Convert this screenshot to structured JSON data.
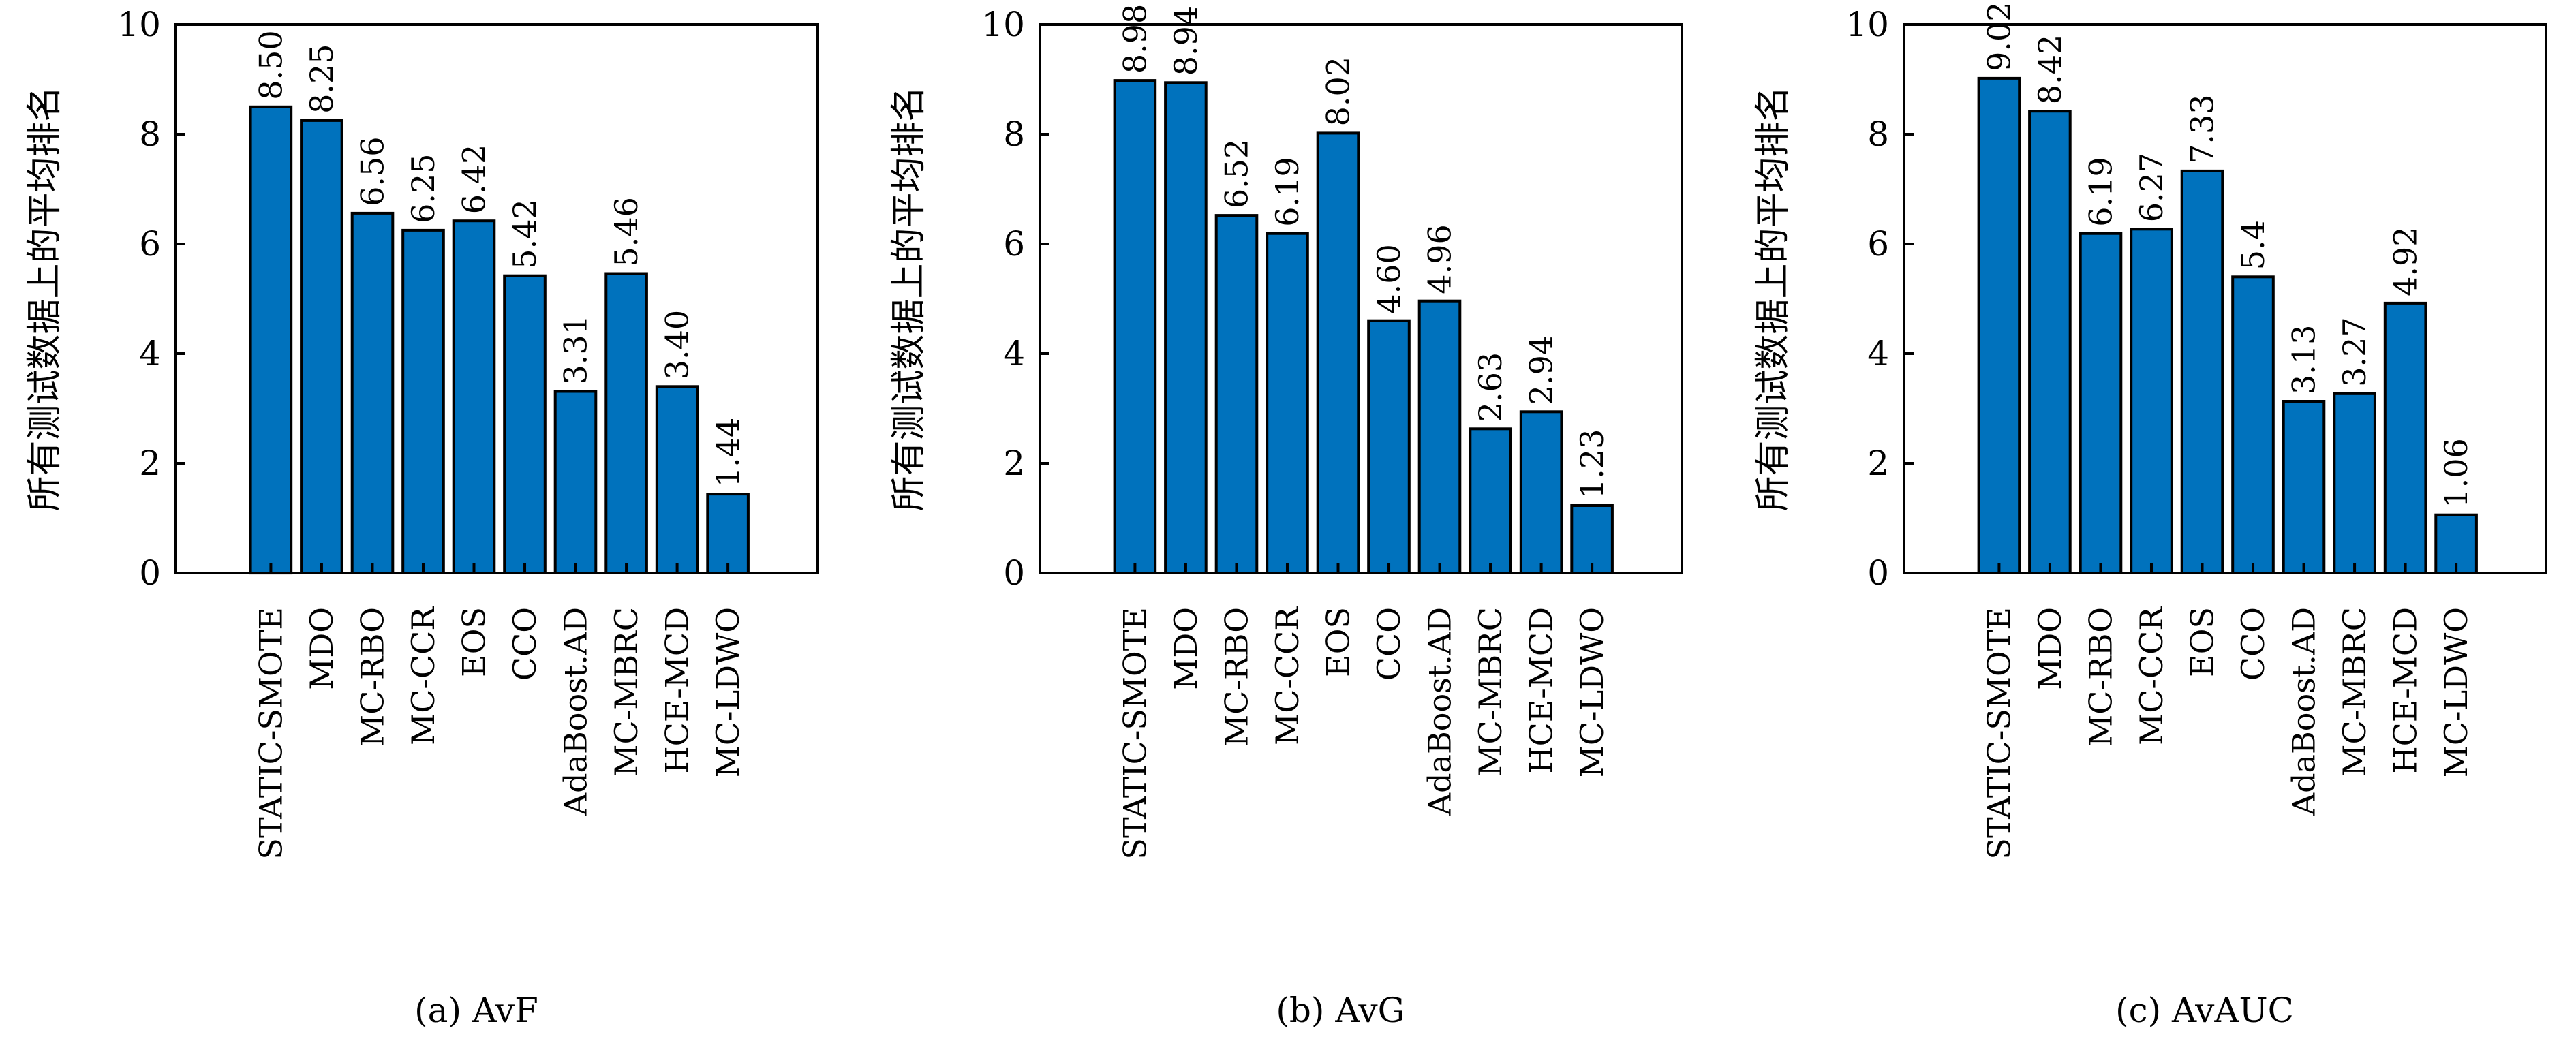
{
  "figure": {
    "bar_color": "#0072BD",
    "edge_color": "#000000"
  },
  "chart_data": [
    {
      "type": "bar",
      "title": "(a) AvF",
      "xlabel": "",
      "ylabel": "所有测试数据上的平均排名",
      "ylim": [
        0,
        10
      ],
      "yticks": [
        "0",
        "2",
        "4",
        "6",
        "8",
        "10"
      ],
      "grid": false,
      "categories": [
        "STATIC-SMOTE",
        "MDO",
        "MC-RBO",
        "MC-CCR",
        "EOS",
        "CCO",
        "AdaBoost.AD",
        "MC-MBRC",
        "HCE-MCD",
        "MC-LDWO"
      ],
      "values": [
        8.5,
        8.25,
        6.56,
        6.25,
        6.42,
        5.42,
        3.31,
        5.46,
        3.4,
        1.44
      ],
      "value_labels": [
        "8.50",
        "8.25",
        "6.56",
        "6.25",
        "6.42",
        "5.42",
        "3.31",
        "5.46",
        "3.40",
        "1.44"
      ]
    },
    {
      "type": "bar",
      "title": "(b) AvG",
      "xlabel": "",
      "ylabel": "所有测试数据上的平均排名",
      "ylim": [
        0,
        10
      ],
      "yticks": [
        "0",
        "2",
        "4",
        "6",
        "8",
        "10"
      ],
      "grid": false,
      "categories": [
        "STATIC-SMOTE",
        "MDO",
        "MC-RBO",
        "MC-CCR",
        "EOS",
        "CCO",
        "AdaBoost.AD",
        "MC-MBRC",
        "HCE-MCD",
        "MC-LDWO"
      ],
      "values": [
        8.98,
        8.94,
        6.52,
        6.19,
        8.02,
        4.6,
        4.96,
        2.63,
        2.94,
        1.23
      ],
      "value_labels": [
        "8.98",
        "8.94",
        "6.52",
        "6.19",
        "8.02",
        "4.60",
        "4.96",
        "2.63",
        "2.94",
        "1.23"
      ]
    },
    {
      "type": "bar",
      "title": "(c) AvAUC",
      "xlabel": "",
      "ylabel": "所有测试数据上的平均排名",
      "ylim": [
        0,
        10
      ],
      "yticks": [
        "0",
        "2",
        "4",
        "6",
        "8",
        "10"
      ],
      "grid": false,
      "categories": [
        "STATIC-SMOTE",
        "MDO",
        "MC-RBO",
        "MC-CCR",
        "EOS",
        "CCO",
        "AdaBoost.AD",
        "MC-MBRC",
        "HCE-MCD",
        "MC-LDWO"
      ],
      "values": [
        9.02,
        8.42,
        6.19,
        6.27,
        7.33,
        5.4,
        3.13,
        3.27,
        4.92,
        1.06
      ],
      "value_labels": [
        "9.02",
        "8.42",
        "6.19",
        "6.27",
        "7.33",
        "5.4",
        "3.13",
        "3.27",
        "4.92",
        "1.06"
      ]
    }
  ]
}
